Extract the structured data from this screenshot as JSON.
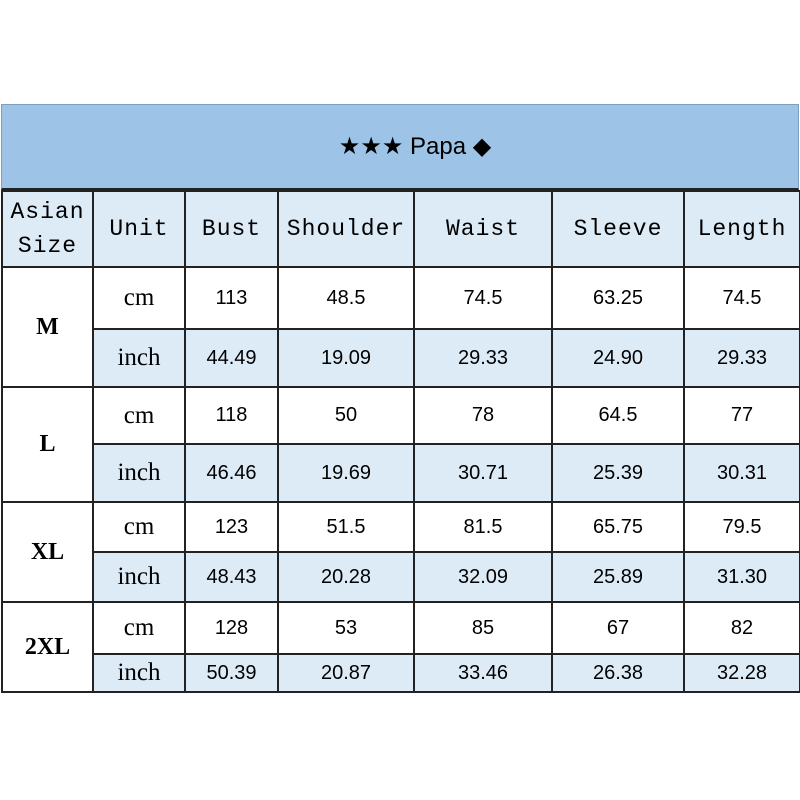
{
  "title": "★★★ Papa ◆",
  "headers": [
    "Asian Size",
    "Unit",
    "Bust",
    "Shoulder",
    "Waist",
    "Sleeve",
    "Length"
  ],
  "rows": [
    {
      "size": "M",
      "cm": [
        "113",
        "48.5",
        "74.5",
        "63.25",
        "74.5"
      ],
      "inch": [
        "44.49",
        "19.09",
        "29.33",
        "24.90",
        "29.33"
      ]
    },
    {
      "size": "L",
      "cm": [
        "118",
        "50",
        "78",
        "64.5",
        "77"
      ],
      "inch": [
        "46.46",
        "19.69",
        "30.71",
        "25.39",
        "30.31"
      ]
    },
    {
      "size": "XL",
      "cm": [
        "123",
        "51.5",
        "81.5",
        "65.75",
        "79.5"
      ],
      "inch": [
        "48.43",
        "20.28",
        "32.09",
        "25.89",
        "31.30"
      ]
    },
    {
      "size": "2XL",
      "cm": [
        "128",
        "53",
        "85",
        "67",
        "82"
      ],
      "inch": [
        "50.39",
        "20.87",
        "33.46",
        "26.38",
        "32.28"
      ]
    }
  ],
  "units": {
    "cm": "cm",
    "inch": "inch"
  },
  "colors": {
    "title_bg": "#9dc3e6",
    "header_bg": "#ddebf7",
    "inch_row_bg": "#ddebf7"
  }
}
